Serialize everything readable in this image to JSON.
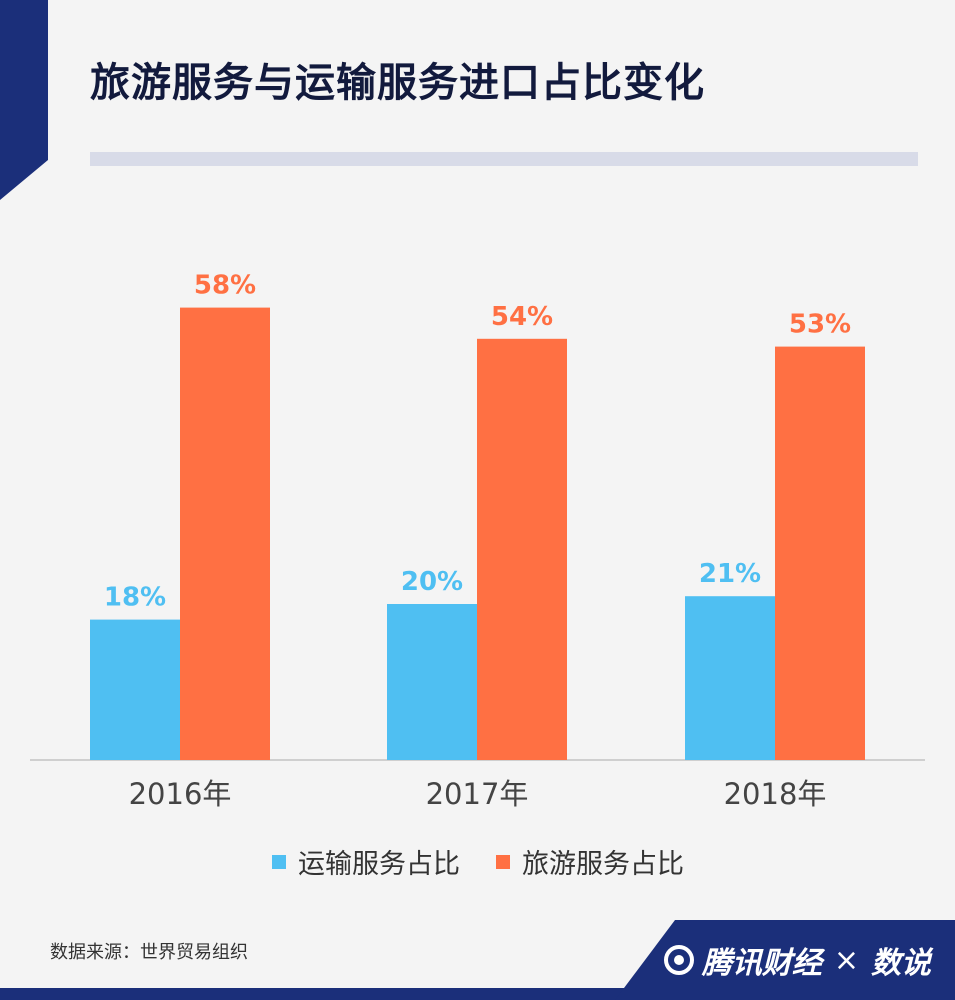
{
  "title": "旅游服务与运输服务进口占比变化",
  "source": "数据来源：世界贸易组织",
  "brand": {
    "left": "腾讯财经",
    "times": "×",
    "right": "数说"
  },
  "colors": {
    "navy": "#1b2f7a",
    "rule": "#d8dbe8",
    "transport": "#4fbff2",
    "tourism": "#ff7043",
    "axis": "#cfcfcf"
  },
  "legend": [
    {
      "label": "运输服务占比",
      "color": "#4fbff2"
    },
    {
      "label": "旅游服务占比",
      "color": "#ff7043"
    }
  ],
  "chart_data": {
    "type": "bar",
    "categories": [
      "2016年",
      "2017年",
      "2018年"
    ],
    "series": [
      {
        "name": "运输服务占比",
        "values": [
          18,
          20,
          21
        ],
        "labels": [
          "18%",
          "20%",
          "21%"
        ]
      },
      {
        "name": "旅游服务占比",
        "values": [
          58,
          54,
          53
        ],
        "labels": [
          "58%",
          "54%",
          "53%"
        ]
      }
    ],
    "ylim": [
      0,
      60
    ],
    "grid": false,
    "legend_position": "bottom"
  }
}
